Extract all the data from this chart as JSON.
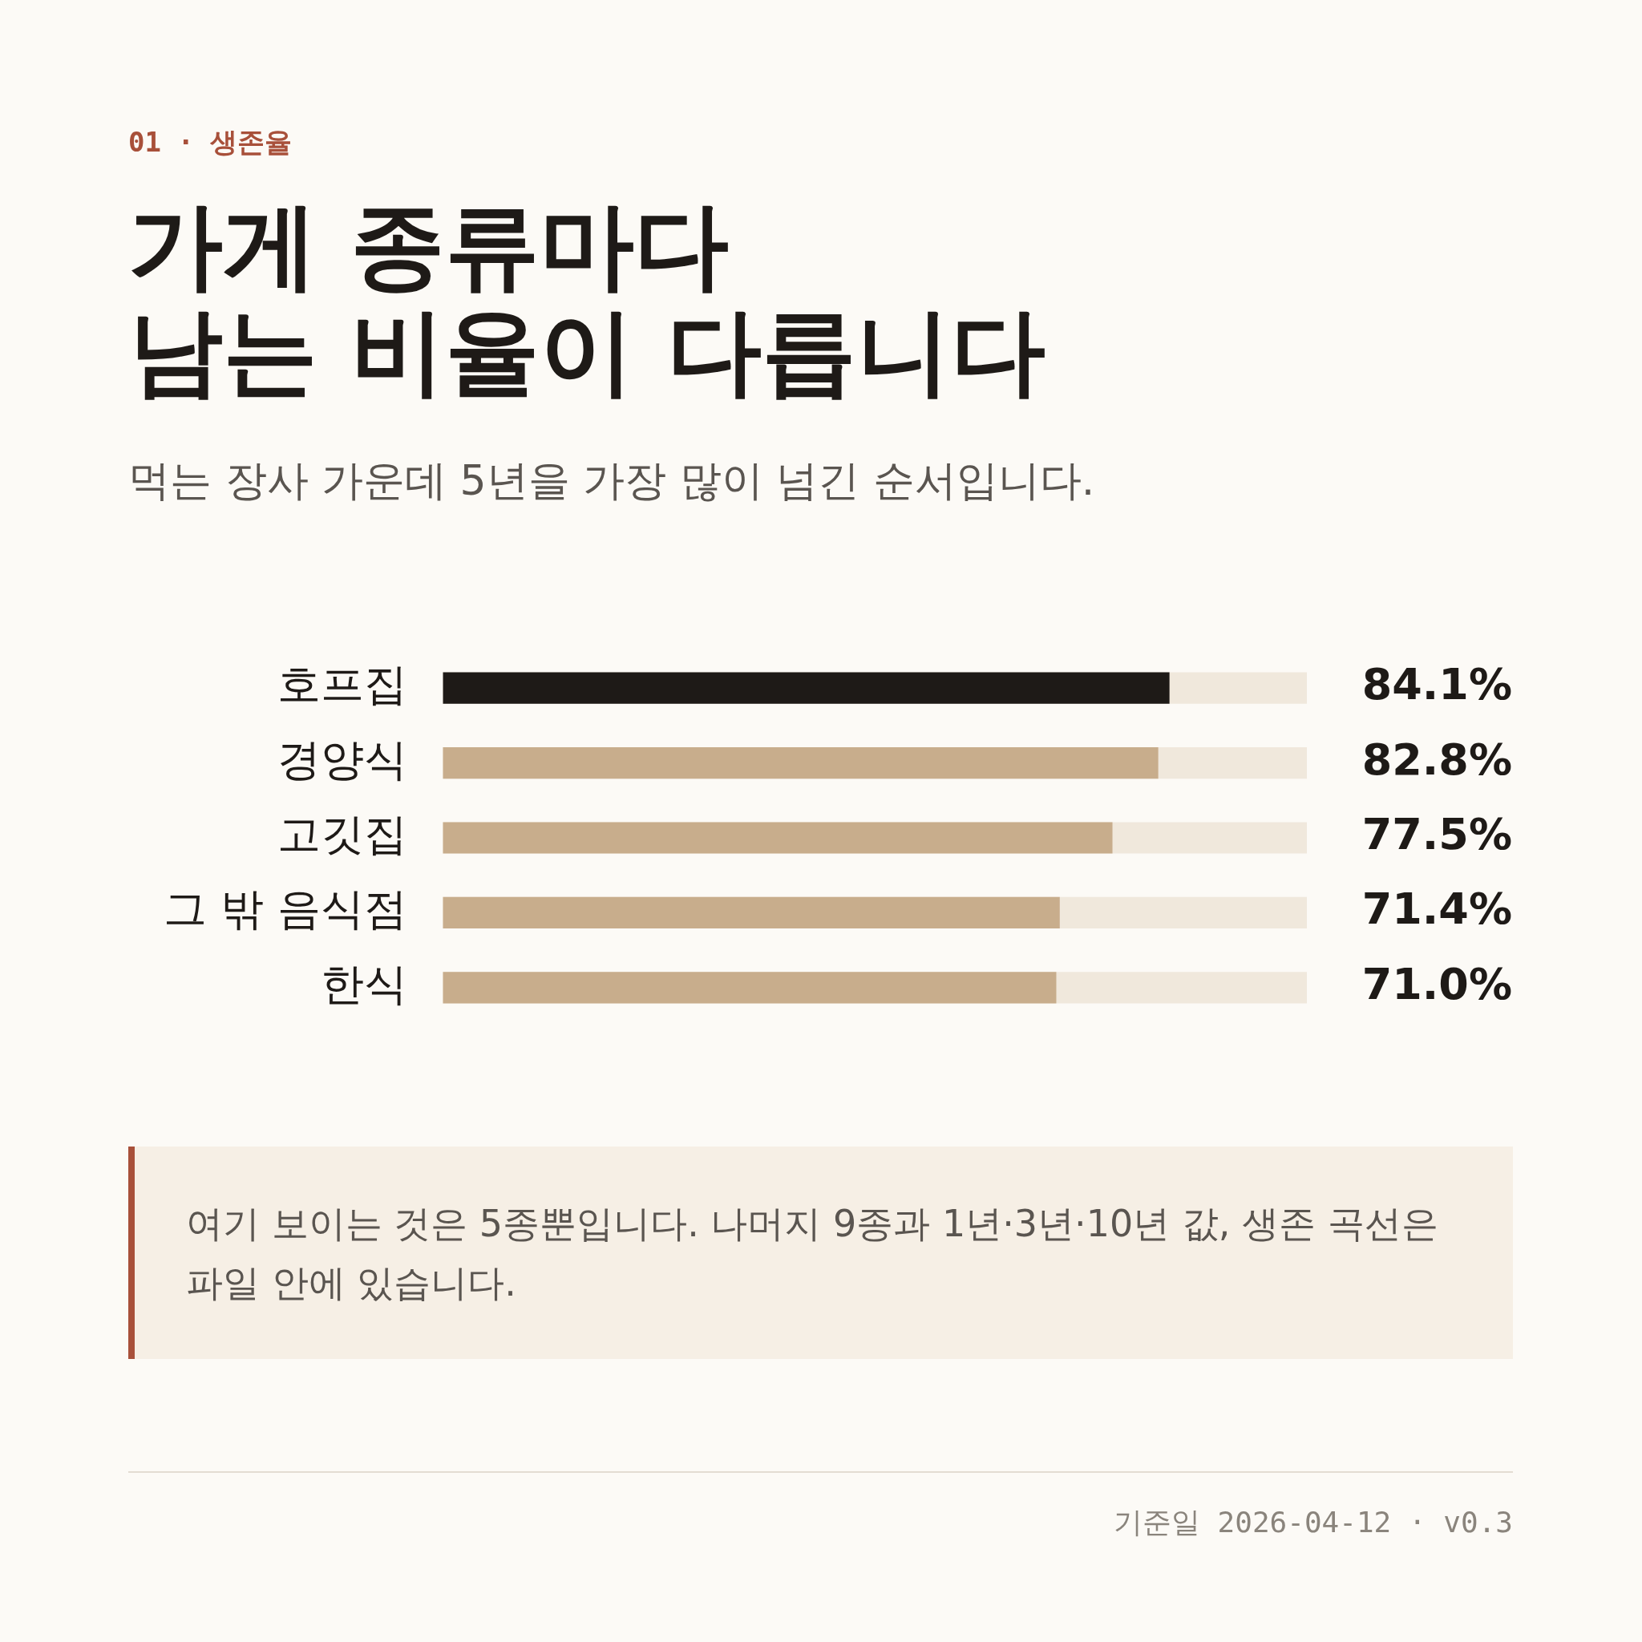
{
  "chart_data": {
    "type": "bar",
    "orientation": "horizontal",
    "title": "가게 종류마다\n남는 비율이 다릅니다",
    "subtitle": "먹는 장사 가운데 5년을 가장 많이 넘긴 순서입니다.",
    "categories": [
      "호프집",
      "경양식",
      "고깃집",
      "그 밖 음식점",
      "한식"
    ],
    "values": [
      84.1,
      82.8,
      77.5,
      71.4,
      71.0
    ],
    "value_labels": [
      "84.1%",
      "82.8%",
      "77.5%",
      "71.4%",
      "71.0%"
    ],
    "colors": [
      "#1e1a17",
      "#c8ad8c",
      "#c8ad8c",
      "#c8ad8c",
      "#c8ad8c"
    ],
    "xlim": [
      0,
      100
    ],
    "tick_labels": "y",
    "grid": false,
    "legend": false,
    "annotations": [
      "01 · 생존율",
      "여기 보이는 것은 5종뿐입니다. 나머지 9종과 1년·3년·10년 값, 생존 곡선은 파일 안에 있습니다.",
      "기준일 2026-04-12 · v0.3"
    ]
  }
}
